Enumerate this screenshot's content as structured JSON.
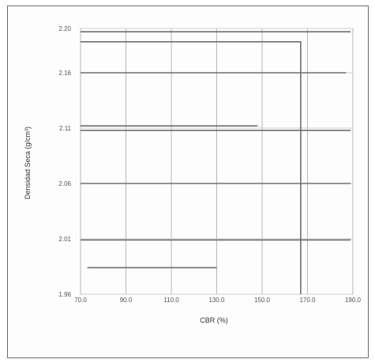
{
  "chart_data": {
    "type": "line",
    "title": "",
    "xlabel": "CBR  (%)",
    "ylabel": "Densidad Seca (g/cm³)",
    "xlim": [
      70.0,
      190.0
    ],
    "ylim": [
      1.96,
      2.2
    ],
    "xticks": [
      "70.0",
      "90.0",
      "110.0",
      "130.0",
      "150.0",
      "170.0",
      "190.0"
    ],
    "yticks": [
      "1.96",
      "2.01",
      "2.06",
      "2.11",
      "2.16",
      "2.20"
    ],
    "grid": true,
    "series": [
      {
        "x": [
          70.0,
          189.0
        ],
        "y": [
          2.197,
          2.197
        ]
      },
      {
        "x": [
          70.0,
          167.0,
          167.0
        ],
        "y": [
          2.188,
          2.188,
          1.96
        ]
      },
      {
        "x": [
          70.0,
          187.0
        ],
        "y": [
          2.16,
          2.16
        ]
      },
      {
        "x": [
          70.0,
          148.0
        ],
        "y": [
          2.112,
          2.112
        ]
      },
      {
        "x": [
          70.0,
          189.0
        ],
        "y": [
          2.108,
          2.108
        ]
      },
      {
        "x": [
          70.0,
          189.0
        ],
        "y": [
          2.06,
          2.06
        ]
      },
      {
        "x": [
          70.0,
          189.0
        ],
        "y": [
          2.009,
          2.009
        ]
      },
      {
        "x": [
          73.0,
          130.0
        ],
        "y": [
          1.984,
          1.984
        ]
      }
    ]
  }
}
